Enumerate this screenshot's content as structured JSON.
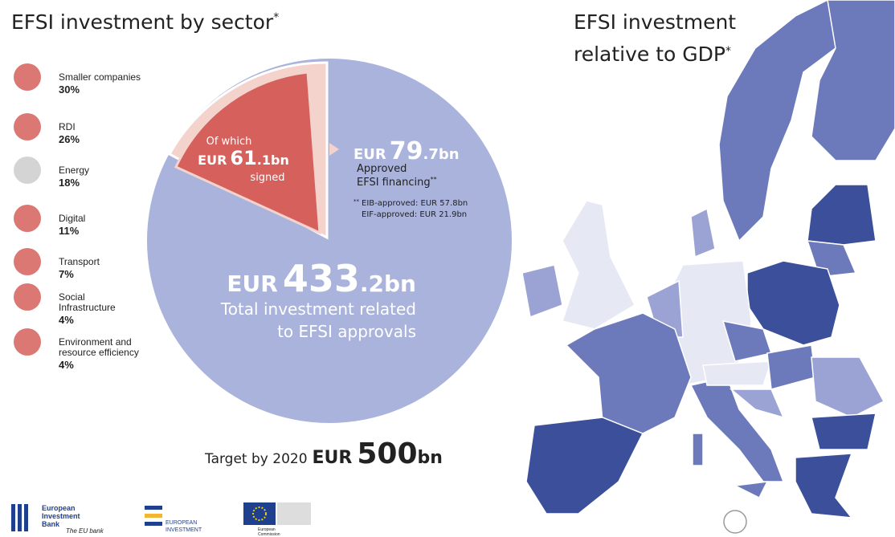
{
  "left": {
    "title": "EFSI investment by sector",
    "title_mark": "*",
    "sectors": [
      {
        "lines": [
          "Smaller companies"
        ],
        "share": "30%"
      },
      {
        "lines": [
          "RDI"
        ],
        "share": "26%"
      },
      {
        "lines": [
          "Energy"
        ],
        "share": "18%"
      },
      {
        "lines": [
          "Digital"
        ],
        "share": "11%"
      },
      {
        "lines": [
          "Transport"
        ],
        "share": "7%"
      },
      {
        "lines": [
          "Social",
          "Infrastructure"
        ],
        "share": "4%"
      },
      {
        "lines": [
          "Environment and",
          "resource efficiency"
        ],
        "share": "4%"
      }
    ]
  },
  "center": {
    "signed": {
      "line1": "Of which",
      "currency": "EUR",
      "amount": "61",
      "decimal": ".1bn",
      "line3": "signed"
    },
    "approved": {
      "currency": "EUR",
      "amount": "79",
      "decimal": ".7bn",
      "line1": "Approved",
      "line2": "EFSI financing",
      "mark": "**",
      "note_mark": "**",
      "note1": "EIB-approved: EUR 57.8bn",
      "note2": "EIF-approved: EUR 21.9bn"
    },
    "total": {
      "currency": "EUR",
      "amount": "433",
      "decimal": ".2bn",
      "line1": "Total investment related",
      "line2": "to EFSI approvals"
    },
    "target": {
      "label": "Target by 2020",
      "currency": "EUR",
      "amount": "500",
      "unit": "bn"
    }
  },
  "map": {
    "title_line1": "EFSI investment",
    "title_line2": "relative to GDP",
    "title_mark": "*"
  },
  "logos": {
    "eib_line1": "European",
    "eib_line2": "Investment",
    "eib_line3": "Bank",
    "eib_tagline": "The EU bank",
    "eif_line1": "EUROPEAN",
    "eif_line2": "INVESTMENT",
    "ec_line1": "European",
    "ec_line2": "Commission"
  }
}
